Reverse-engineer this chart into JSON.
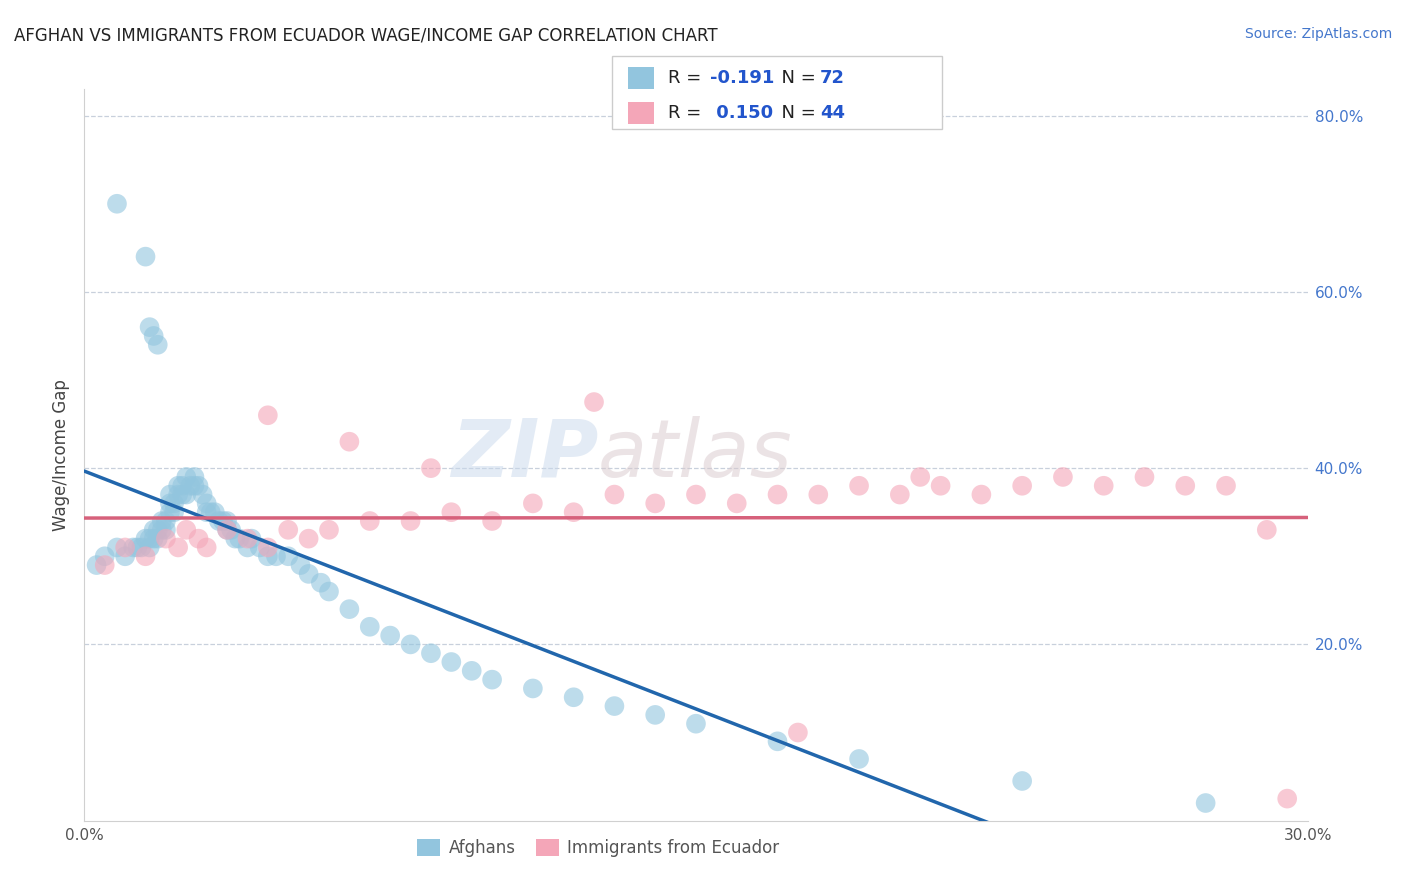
{
  "title": "AFGHAN VS IMMIGRANTS FROM ECUADOR WAGE/INCOME GAP CORRELATION CHART",
  "source": "Source: ZipAtlas.com",
  "ylabel": "Wage/Income Gap",
  "legend_label1": "Afghans",
  "legend_label2": "Immigrants from Ecuador",
  "R1": -0.191,
  "N1": 72,
  "R2": 0.15,
  "N2": 44,
  "color_blue": "#92c5de",
  "color_pink": "#f4a6b8",
  "color_blue_line": "#2166ac",
  "color_pink_line": "#d6617b",
  "watermark_zip": "ZIP",
  "watermark_atlas": "atlas",
  "xmin": 0.0,
  "xmax": 30.0,
  "ymin": 0.0,
  "ymax": 83.0,
  "right_ytick_vals": [
    20.0,
    40.0,
    60.0,
    80.0
  ],
  "blue_x": [
    0.3,
    0.5,
    0.8,
    1.0,
    1.2,
    1.3,
    1.4,
    1.5,
    1.6,
    1.6,
    1.7,
    1.7,
    1.8,
    1.8,
    1.9,
    1.9,
    2.0,
    2.0,
    2.1,
    2.1,
    2.1,
    2.2,
    2.2,
    2.3,
    2.3,
    2.4,
    2.4,
    2.5,
    2.5,
    2.6,
    2.7,
    2.7,
    2.8,
    2.9,
    3.0,
    3.0,
    3.1,
    3.2,
    3.3,
    3.4,
    3.5,
    3.5,
    3.6,
    3.7,
    3.8,
    4.0,
    4.1,
    4.3,
    4.5,
    4.7,
    5.0,
    5.3,
    5.5,
    5.8,
    6.0,
    6.5,
    7.0,
    7.5,
    8.0,
    8.5,
    9.0,
    9.5,
    10.0,
    11.0,
    12.0,
    13.0,
    14.0,
    15.0,
    17.0,
    19.0,
    23.0,
    27.5
  ],
  "blue_y": [
    29.0,
    30.0,
    31.0,
    30.0,
    31.0,
    31.0,
    31.0,
    32.0,
    31.0,
    32.0,
    32.0,
    33.0,
    32.0,
    33.0,
    33.0,
    34.0,
    33.0,
    34.0,
    35.0,
    36.0,
    37.0,
    35.0,
    36.0,
    37.0,
    38.0,
    37.0,
    38.0,
    37.0,
    39.0,
    38.0,
    38.0,
    39.0,
    38.0,
    37.0,
    35.0,
    36.0,
    35.0,
    35.0,
    34.0,
    34.0,
    33.0,
    34.0,
    33.0,
    32.0,
    32.0,
    31.0,
    32.0,
    31.0,
    30.0,
    30.0,
    30.0,
    29.0,
    28.0,
    27.0,
    26.0,
    24.0,
    22.0,
    21.0,
    20.0,
    19.0,
    18.0,
    17.0,
    16.0,
    15.0,
    14.0,
    13.0,
    12.0,
    11.0,
    9.0,
    7.0,
    4.5,
    2.0
  ],
  "blue_y_outliers_x": [
    0.8,
    1.5,
    1.6,
    1.7,
    1.8
  ],
  "blue_y_outliers_y": [
    70.0,
    64.0,
    56.0,
    55.0,
    54.0
  ],
  "pink_x": [
    0.5,
    1.0,
    1.5,
    2.0,
    2.3,
    2.5,
    2.8,
    3.0,
    3.5,
    4.0,
    4.5,
    5.0,
    5.5,
    6.0,
    7.0,
    8.0,
    9.0,
    10.0,
    11.0,
    12.0,
    13.0,
    14.0,
    15.0,
    16.0,
    17.0,
    18.0,
    19.0,
    20.0,
    21.0,
    22.0,
    23.0,
    24.0,
    25.0,
    26.0,
    27.0,
    28.0,
    29.0,
    29.5,
    4.5,
    6.5,
    8.5,
    20.5,
    12.5,
    17.5
  ],
  "pink_y": [
    29.0,
    31.0,
    30.0,
    32.0,
    31.0,
    33.0,
    32.0,
    31.0,
    33.0,
    32.0,
    31.0,
    33.0,
    32.0,
    33.0,
    34.0,
    34.0,
    35.0,
    34.0,
    36.0,
    35.0,
    37.0,
    36.0,
    37.0,
    36.0,
    37.0,
    37.0,
    38.0,
    37.0,
    38.0,
    37.0,
    38.0,
    39.0,
    38.0,
    39.0,
    38.0,
    38.0,
    33.0,
    2.5,
    46.0,
    43.0,
    40.0,
    39.0,
    47.5,
    10.0
  ]
}
